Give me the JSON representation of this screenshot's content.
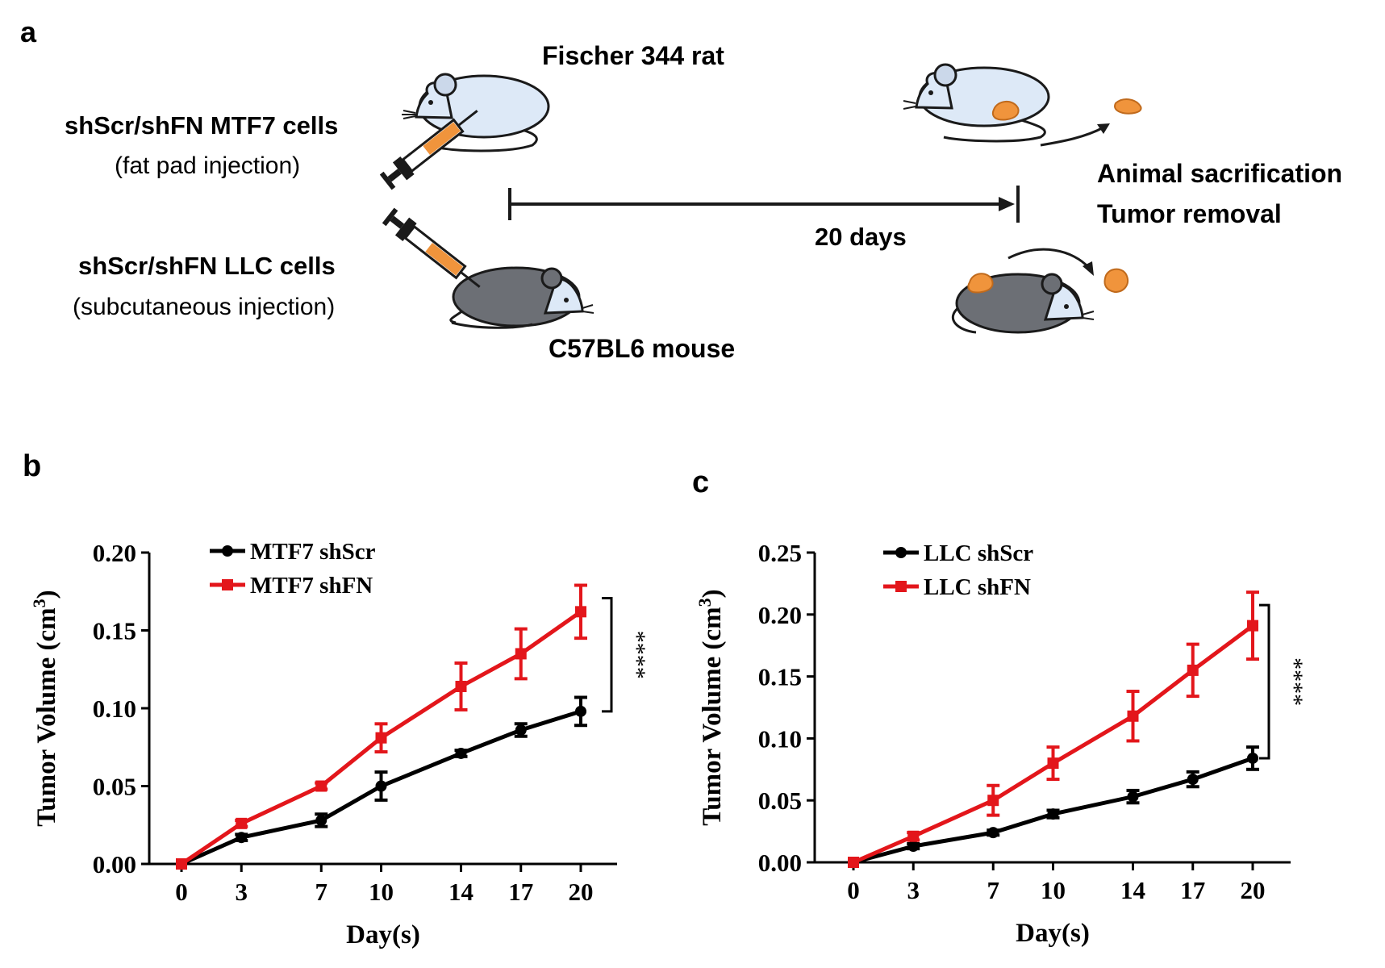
{
  "panel_a": {
    "label": "a",
    "rat_label": "Fischer 344 rat",
    "mouse_label": "C57BL6 mouse",
    "rat_cells": "shScr/shFN MTF7 cells",
    "rat_injection": "(fat pad injection)",
    "mouse_cells": "shScr/shFN LLC cells",
    "mouse_injection": "(subcutaneous injection)",
    "duration": "20 days",
    "endpoint_line1": "Animal sacrification",
    "endpoint_line2": "Tumor removal"
  },
  "colors": {
    "shScr": "#000000",
    "shFN": "#e3161b",
    "tumor": "#f0943c",
    "rat_body": "#dde9f7",
    "mouse_body": "#6c6f75"
  },
  "chart_data": [
    {
      "id": "b",
      "panel_label": "b",
      "type": "line",
      "title": "",
      "xlabel": "Day(s)",
      "ylabel": "Tumor Volume (cm",
      "ylabel_sup": "3",
      "ylabel_close": ")",
      "x": [
        0,
        3,
        7,
        10,
        14,
        17,
        20
      ],
      "x_ticks": [
        "0",
        "3",
        "7",
        "10",
        "14",
        "17",
        "20"
      ],
      "ylim": [
        0,
        0.2
      ],
      "y_ticks": [
        0,
        0.05,
        0.1,
        0.15,
        0.2
      ],
      "y_tick_labels": [
        "0.00",
        "0.05",
        "0.10",
        "0.15",
        "0.20"
      ],
      "significance": "****",
      "legend_position": "top-left",
      "series": [
        {
          "name": "MTF7 shScr",
          "color_key": "shScr",
          "marker": "circle",
          "values": [
            0,
            0.017,
            0.028,
            0.05,
            0.071,
            0.086,
            0.098
          ],
          "errors": [
            0,
            0.002,
            0.004,
            0.009,
            0.002,
            0.004,
            0.009
          ]
        },
        {
          "name": "MTF7 shFN",
          "color_key": "shFN",
          "marker": "square",
          "values": [
            0,
            0.026,
            0.05,
            0.081,
            0.114,
            0.135,
            0.162
          ],
          "errors": [
            0,
            0.002,
            0.002,
            0.009,
            0.015,
            0.016,
            0.017
          ]
        }
      ]
    },
    {
      "id": "c",
      "panel_label": "c",
      "type": "line",
      "title": "",
      "xlabel": "Day(s)",
      "ylabel": "Tumor Volume (cm",
      "ylabel_sup": "3",
      "ylabel_close": ")",
      "x": [
        0,
        3,
        7,
        10,
        14,
        17,
        20
      ],
      "x_ticks": [
        "0",
        "3",
        "7",
        "10",
        "14",
        "17",
        "20"
      ],
      "ylim": [
        0,
        0.25
      ],
      "y_ticks": [
        0,
        0.05,
        0.1,
        0.15,
        0.2,
        0.25
      ],
      "y_tick_labels": [
        "0.00",
        "0.05",
        "0.10",
        "0.15",
        "0.20",
        "0.25"
      ],
      "significance": "****",
      "legend_position": "top-left",
      "series": [
        {
          "name": "LLC shScr",
          "color_key": "shScr",
          "marker": "circle",
          "values": [
            0,
            0.013,
            0.024,
            0.039,
            0.053,
            0.067,
            0.084
          ],
          "errors": [
            0,
            0.002,
            0.002,
            0.003,
            0.005,
            0.006,
            0.009
          ]
        },
        {
          "name": "LLC shFN",
          "color_key": "shFN",
          "marker": "square",
          "values": [
            0,
            0.021,
            0.05,
            0.08,
            0.118,
            0.155,
            0.191
          ],
          "errors": [
            0,
            0.003,
            0.012,
            0.013,
            0.02,
            0.021,
            0.027
          ]
        }
      ]
    }
  ]
}
